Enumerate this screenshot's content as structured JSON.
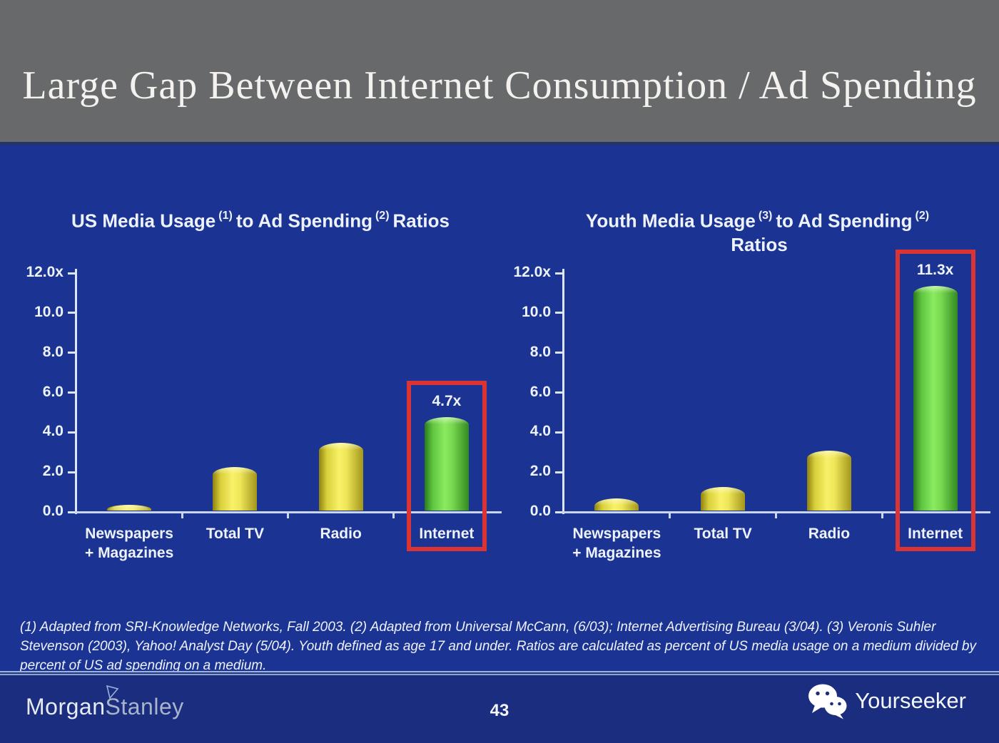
{
  "slide": {
    "title": "Large Gap Between Internet Consumption / Ad Spending",
    "page_number": "43",
    "footnote": "(1) Adapted from SRI-Knowledge Networks, Fall 2003.  (2) Adapted from Universal McCann, (6/03); Internet Advertising Bureau (3/04). (3) Veronis Suhler Stevenson (2003), Yahoo! Analyst Day (5/04).  Youth defined as age 17 and under.  Ratios are calculated as percent of US media usage on a medium divided by percent of US ad spending on a medium.",
    "brand_left": {
      "part1": "Morgan",
      "part2": "Stanley"
    },
    "brand_right": {
      "label": "Yourseeker",
      "icon": "wechat-icon"
    }
  },
  "colors": {
    "header_background": "#67696a",
    "slide_background": "#1b3493",
    "footer_background": "#1a2d7f",
    "bar_yellow": "#f3eb5e",
    "bar_green": "#7fe356",
    "highlight_red": "#da3434",
    "axis_text": "#eef2fc"
  },
  "chart_data": [
    {
      "type": "bar",
      "title": "US Media Usage (1) to Ad Spending (2) Ratios",
      "title_parts": {
        "pre": "US Media Usage",
        "sup1": "(1)",
        "mid": "to Ad Spending",
        "sup2": "(2)",
        "post": "Ratios",
        "line2": ""
      },
      "categories": [
        "Newspapers\n+ Magazines",
        "Total TV",
        "Radio",
        "Internet"
      ],
      "values": [
        0.3,
        2.2,
        3.4,
        4.7
      ],
      "bar_labels": [
        "",
        "",
        "",
        "4.7x"
      ],
      "bar_colors": [
        "yellow",
        "yellow",
        "yellow",
        "green"
      ],
      "highlight_index": 3,
      "xlabel": "",
      "ylabel": "",
      "ylim": [
        0,
        12
      ],
      "ytick_labels": [
        "12.0x",
        "10.0",
        "8.0",
        "6.0",
        "4.0",
        "2.0",
        "0.0"
      ],
      "grid": false,
      "legend": "none"
    },
    {
      "type": "bar",
      "title": "Youth Media Usage (3) to Ad Spending (2) Ratios",
      "title_parts": {
        "pre": "Youth Media Usage",
        "sup1": "(3)",
        "mid": "to Ad Spending",
        "sup2": "(2)",
        "post": "",
        "line2": "Ratios"
      },
      "categories": [
        "Newspapers\n+ Magazines",
        "Total TV",
        "Radio",
        "Internet"
      ],
      "values": [
        0.6,
        1.2,
        3.0,
        11.3
      ],
      "bar_labels": [
        "",
        "",
        "",
        "11.3x"
      ],
      "bar_colors": [
        "yellow",
        "yellow",
        "yellow",
        "green"
      ],
      "highlight_index": 3,
      "xlabel": "",
      "ylabel": "",
      "ylim": [
        0,
        12
      ],
      "ytick_labels": [
        "12.0x",
        "10.0",
        "8.0",
        "6.0",
        "4.0",
        "2.0",
        "0.0"
      ],
      "grid": false,
      "legend": "none"
    }
  ]
}
